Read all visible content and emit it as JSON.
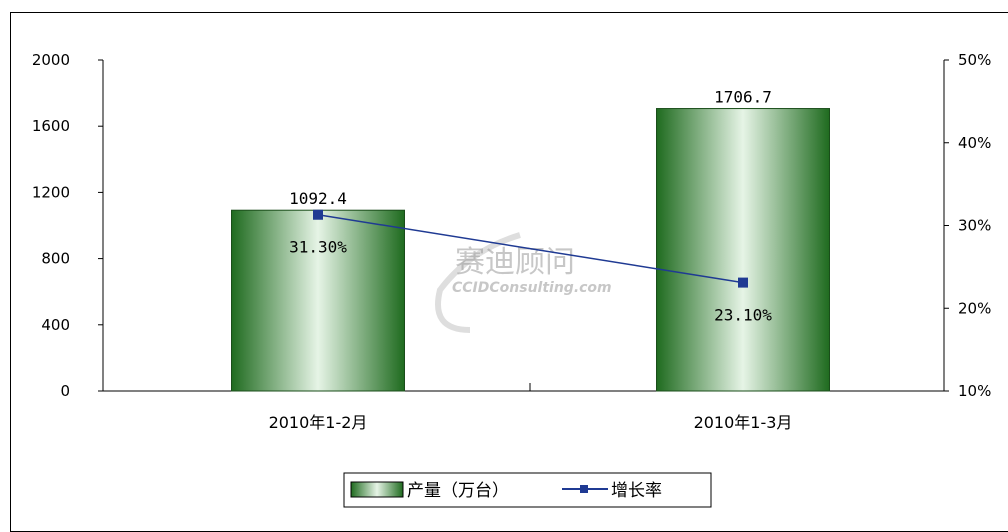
{
  "watermark": {
    "line1": "赛迪顾问",
    "line2": "CCIDConsulting.com"
  },
  "chart_data": {
    "type": "bar",
    "categories": [
      "2010年1-2月",
      "2010年1-3月"
    ],
    "series": [
      {
        "name": "产量（万台）",
        "type": "bar",
        "axis": "left",
        "values": [
          1092.4,
          1706.7
        ],
        "labels": [
          "1092.4",
          "1706.7"
        ],
        "color": "#2e7d32"
      },
      {
        "name": "增长率",
        "type": "line",
        "axis": "right",
        "values": [
          31.3,
          23.1
        ],
        "labels": [
          "31.30%",
          "23.10%"
        ],
        "color": "#1f3a93"
      }
    ],
    "y_left": {
      "min": 0,
      "max": 2000,
      "ticks": [
        "0",
        "400",
        "800",
        "1200",
        "1600",
        "2000"
      ]
    },
    "y_right": {
      "min": 10,
      "max": 50,
      "ticks": [
        "10%",
        "20%",
        "30%",
        "40%",
        "50%"
      ]
    },
    "title": "",
    "xlabel": "",
    "ylabel": "",
    "grid": false,
    "legend_position": "bottom"
  }
}
